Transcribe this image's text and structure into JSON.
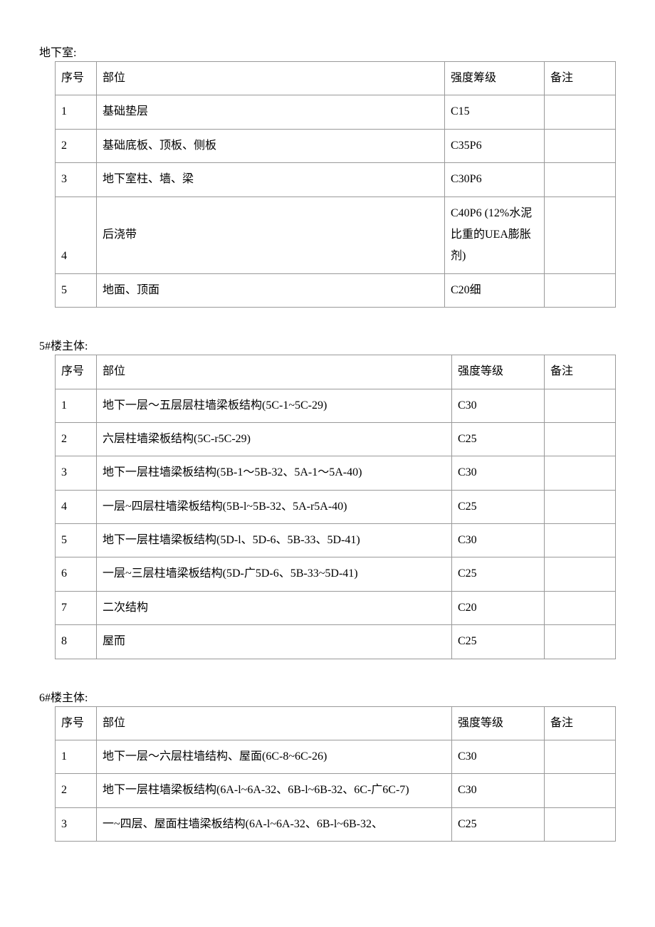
{
  "sections": [
    {
      "title": "地下室:",
      "headers": {
        "num": "序号",
        "part": "部位",
        "grade": "强度筹级",
        "note": "备注"
      },
      "gradeWide": true,
      "rows": [
        {
          "num": "1",
          "part": "基础垫层",
          "grade": "C15",
          "note": ""
        },
        {
          "num": "2",
          "part": "基础底板、顶板、侧板",
          "grade": "C35P6",
          "note": ""
        },
        {
          "num": "3",
          "part": "地下室柱、墙、梁",
          "grade": "C30P6",
          "note": ""
        },
        {
          "num": "4",
          "part": "后浇带",
          "grade": "C40P6 (12%水泥比重的UEA膨胀剂)",
          "note": ""
        },
        {
          "num": "5",
          "part": "地面、顶面",
          "grade": "C20细",
          "note": ""
        }
      ]
    },
    {
      "title": "5#楼主体:",
      "headers": {
        "num": "序号",
        "part": "部位",
        "grade": "强度等级",
        "note": "备注"
      },
      "gradeWide": false,
      "rows": [
        {
          "num": "1",
          "part": "地下一层～五层层柱墙梁板结构(5C-1~5C-29)",
          "grade": "C30",
          "note": ""
        },
        {
          "num": "2",
          "part": "六层柱墙梁板结构(5C-r5C-29)",
          "grade": "C25",
          "note": ""
        },
        {
          "num": "3",
          "part": "地下一层柱墙梁板结构(5B-1～5B-32、5A-1～5A-40)",
          "grade": "C30",
          "note": ""
        },
        {
          "num": "4",
          "part": "一层~四层柱墙梁板结构(5B-l~5B-32、5A-r5A-40)",
          "grade": "C25",
          "note": ""
        },
        {
          "num": "5",
          "part": "地下一层柱墙梁板结构(5D-l、5D-6、5B-33、5D-41)",
          "grade": "C30",
          "note": ""
        },
        {
          "num": "6",
          "part": "一层~三层柱墙梁板结构(5D-广5D-6、5B-33~5D-41)",
          "grade": "C25",
          "note": ""
        },
        {
          "num": "7",
          "part": "二次结构",
          "grade": "C20",
          "note": ""
        },
        {
          "num": "8",
          "part": "屋而",
          "grade": "C25",
          "note": ""
        }
      ]
    },
    {
      "title": "6#楼主体:",
      "headers": {
        "num": "序号",
        "part": "部位",
        "grade": "强度等级",
        "note": "备注"
      },
      "gradeWide": false,
      "rows": [
        {
          "num": "1",
          "part": "地下一层～六层柱墙结构、屋面(6C-8~6C-26)",
          "grade": "C30",
          "note": ""
        },
        {
          "num": "2",
          "part": "地下一层柱墙梁板结构(6A-l~6A-32、6B-l~6B-32、6C-广6C-7)",
          "grade": "C30",
          "note": ""
        },
        {
          "num": "3",
          "part": "一~四层、屋面柱墙梁板结构(6A-l~6A-32、6B-l~6B-32、",
          "grade": "C25",
          "note": ""
        }
      ]
    }
  ]
}
